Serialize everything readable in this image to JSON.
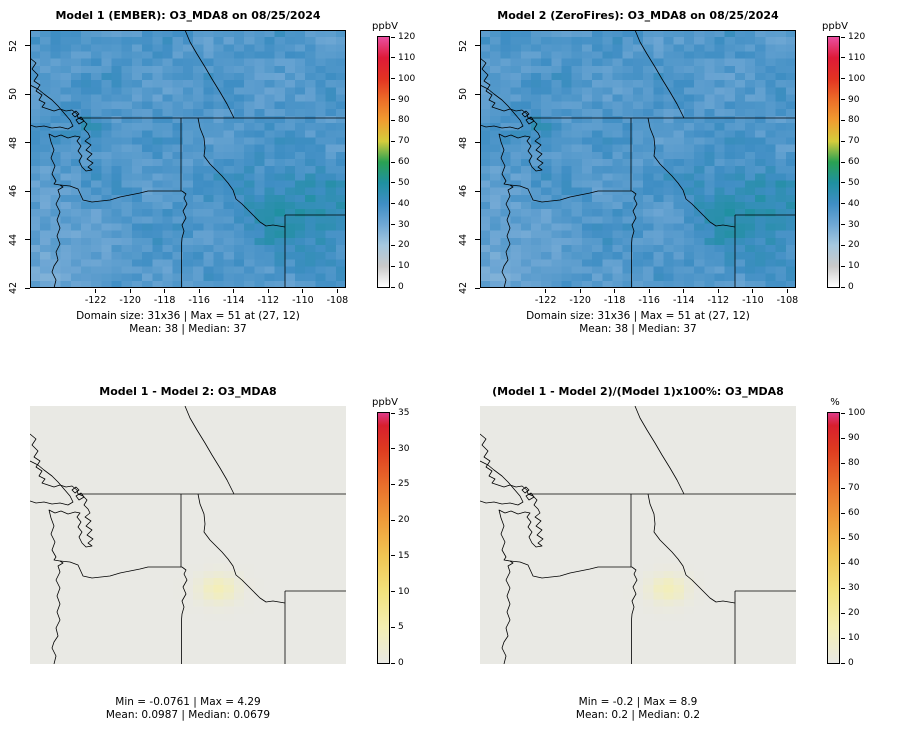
{
  "panels": [
    {
      "name": "model1",
      "title": "Model 1 (EMBER): O3_MDA8 on 08/25/2024",
      "captions": [
        "Domain size: 31x36 | Max = 51 at (27, 12)",
        "Mean: 38 |  Median: 37"
      ],
      "x_ticks": [
        -122,
        -120,
        -118,
        -116,
        -114,
        -112,
        -110,
        -108
      ],
      "y_ticks": [
        52,
        50,
        48,
        46,
        44,
        42
      ],
      "colorbar": {
        "label": "ppbV",
        "min": 0,
        "max": 120,
        "ticks": [
          0,
          10,
          20,
          30,
          40,
          50,
          60,
          70,
          80,
          90,
          100,
          110,
          120
        ],
        "stops": [
          {
            "p": 0,
            "c": "#ffffff"
          },
          {
            "p": 0.083,
            "c": "#c9c9c9"
          },
          {
            "p": 0.167,
            "c": "#a5c8df"
          },
          {
            "p": 0.25,
            "c": "#6fa7d4"
          },
          {
            "p": 0.333,
            "c": "#3f8ec4"
          },
          {
            "p": 0.417,
            "c": "#1f90a0"
          },
          {
            "p": 0.5,
            "c": "#2aa153"
          },
          {
            "p": 0.583,
            "c": "#d5cc3c"
          },
          {
            "p": 0.667,
            "c": "#f09c30"
          },
          {
            "p": 0.75,
            "c": "#ec6d28"
          },
          {
            "p": 0.833,
            "c": "#e23322"
          },
          {
            "p": 0.917,
            "c": "#de1a38"
          },
          {
            "p": 1,
            "c": "#ea4fa1"
          }
        ]
      }
    },
    {
      "name": "model2",
      "title": "Model 2 (ZeroFires): O3_MDA8 on 08/25/2024",
      "captions": [
        "Domain size: 31x36 | Max = 51 at (27, 12)",
        "Mean: 38 |  Median: 37"
      ],
      "x_ticks": [
        -122,
        -120,
        -118,
        -116,
        -114,
        -112,
        -110,
        -108
      ],
      "y_ticks": [
        52,
        50,
        48,
        46,
        44,
        42
      ],
      "colorbar": {
        "label": "ppbV",
        "min": 0,
        "max": 120,
        "ticks": [
          0,
          10,
          20,
          30,
          40,
          50,
          60,
          70,
          80,
          90,
          100,
          110,
          120
        ],
        "stops": [
          {
            "p": 0,
            "c": "#ffffff"
          },
          {
            "p": 0.083,
            "c": "#c9c9c9"
          },
          {
            "p": 0.167,
            "c": "#a5c8df"
          },
          {
            "p": 0.25,
            "c": "#6fa7d4"
          },
          {
            "p": 0.333,
            "c": "#3f8ec4"
          },
          {
            "p": 0.417,
            "c": "#1f90a0"
          },
          {
            "p": 0.5,
            "c": "#2aa153"
          },
          {
            "p": 0.583,
            "c": "#d5cc3c"
          },
          {
            "p": 0.667,
            "c": "#f09c30"
          },
          {
            "p": 0.75,
            "c": "#ec6d28"
          },
          {
            "p": 0.833,
            "c": "#e23322"
          },
          {
            "p": 0.917,
            "c": "#de1a38"
          },
          {
            "p": 1,
            "c": "#ea4fa1"
          }
        ]
      }
    },
    {
      "name": "difference",
      "title": "Model 1 - Model 2: O3_MDA8",
      "captions": [
        "Min = -0.0761 | Max = 4.29",
        "Mean: 0.0987 |  Median: 0.0679"
      ],
      "colorbar": {
        "label": "ppbV",
        "min": 0,
        "max": 35,
        "ticks": [
          0,
          5,
          10,
          15,
          20,
          25,
          30,
          35
        ],
        "stops": [
          {
            "p": 0,
            "c": "#e9e9e4"
          },
          {
            "p": 0.143,
            "c": "#f4efb2"
          },
          {
            "p": 0.286,
            "c": "#f2e27c"
          },
          {
            "p": 0.429,
            "c": "#f0c553"
          },
          {
            "p": 0.571,
            "c": "#ef9c3a"
          },
          {
            "p": 0.714,
            "c": "#e96e2b"
          },
          {
            "p": 0.857,
            "c": "#de3a20"
          },
          {
            "p": 0.95,
            "c": "#d81f2e"
          },
          {
            "p": 1,
            "c": "#dc3a86"
          }
        ]
      }
    },
    {
      "name": "percent-difference",
      "title": "(Model 1 - Model 2)/(Model 1)x100%: O3_MDA8",
      "captions": [
        "Min = -0.2 | Max = 8.9",
        "Mean: 0.2 |  Median: 0.2"
      ],
      "colorbar": {
        "label": "%",
        "min": 0,
        "max": 100,
        "ticks": [
          0,
          10,
          20,
          30,
          40,
          50,
          60,
          70,
          80,
          90,
          100
        ],
        "stops": [
          {
            "p": 0,
            "c": "#e9e9e4"
          },
          {
            "p": 0.143,
            "c": "#f4efb2"
          },
          {
            "p": 0.286,
            "c": "#f2e27c"
          },
          {
            "p": 0.429,
            "c": "#f0c553"
          },
          {
            "p": 0.571,
            "c": "#ef9c3a"
          },
          {
            "p": 0.714,
            "c": "#e96e2b"
          },
          {
            "p": 0.857,
            "c": "#de3a20"
          },
          {
            "p": 0.95,
            "c": "#d81f2e"
          },
          {
            "p": 1,
            "c": "#dc3a86"
          }
        ]
      }
    }
  ],
  "chart_data": [
    {
      "type": "heatmap",
      "panel": "top-left",
      "title": "Model 1 (EMBER): O3_MDA8 on 08/25/2024",
      "variable": "O3_MDA8",
      "date": "08/25/2024",
      "units": "ppbV",
      "color_scale_range": [
        0,
        120
      ],
      "colorbar_ticks": [
        0,
        10,
        20,
        30,
        40,
        50,
        60,
        70,
        80,
        90,
        100,
        110,
        120
      ],
      "lon_ticks": [
        -122,
        -120,
        -118,
        -116,
        -114,
        -112,
        -110,
        -108
      ],
      "lat_ticks": [
        52,
        50,
        48,
        46,
        44,
        42
      ],
      "domain_size": "31x36",
      "max": 51,
      "max_location": "(27, 12)",
      "mean": 38,
      "median": 37
    },
    {
      "type": "heatmap",
      "panel": "top-right",
      "title": "Model 2 (ZeroFires): O3_MDA8 on 08/25/2024",
      "variable": "O3_MDA8",
      "date": "08/25/2024",
      "units": "ppbV",
      "color_scale_range": [
        0,
        120
      ],
      "colorbar_ticks": [
        0,
        10,
        20,
        30,
        40,
        50,
        60,
        70,
        80,
        90,
        100,
        110,
        120
      ],
      "lon_ticks": [
        -122,
        -120,
        -118,
        -116,
        -114,
        -112,
        -110,
        -108
      ],
      "lat_ticks": [
        52,
        50,
        48,
        46,
        44,
        42
      ],
      "domain_size": "31x36",
      "max": 51,
      "max_location": "(27, 12)",
      "mean": 38,
      "median": 37
    },
    {
      "type": "heatmap",
      "panel": "bottom-left",
      "title": "Model 1 - Model 2: O3_MDA8",
      "variable": "O3_MDA8 difference",
      "units": "ppbV",
      "color_scale_range": [
        0,
        35
      ],
      "colorbar_ticks": [
        0,
        5,
        10,
        15,
        20,
        25,
        30,
        35
      ],
      "min": -0.0761,
      "max": 4.29,
      "mean": 0.0987,
      "median": 0.0679
    },
    {
      "type": "heatmap",
      "panel": "bottom-right",
      "title": "(Model 1 - Model 2)/(Model 1)x100%: O3_MDA8",
      "variable": "O3_MDA8 percent difference",
      "units": "%",
      "color_scale_range": [
        0,
        100
      ],
      "colorbar_ticks": [
        0,
        10,
        20,
        30,
        40,
        50,
        60,
        70,
        80,
        90,
        100
      ],
      "min": -0.2,
      "max": 8.9,
      "mean": 0.2,
      "median": 0.2
    }
  ]
}
